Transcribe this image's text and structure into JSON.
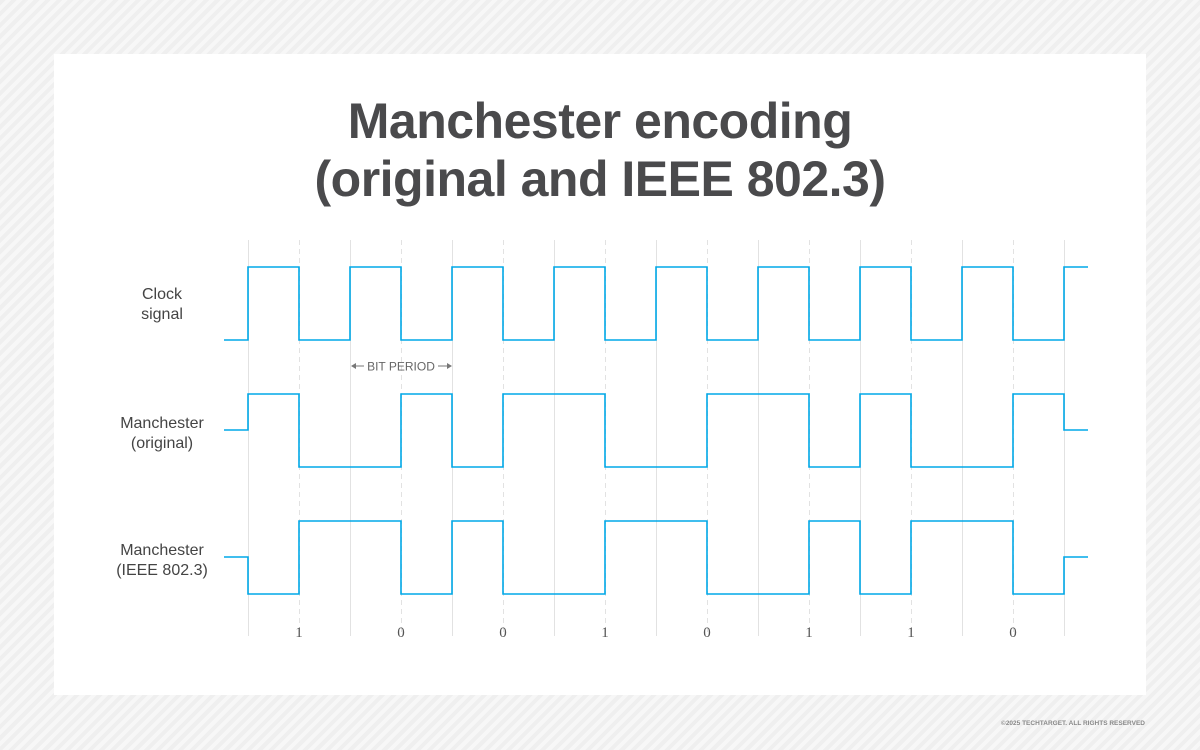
{
  "title_line1": "Manchester encoding",
  "title_line2": "(original and IEEE 802.3)",
  "signals": [
    {
      "label_line1": "Clock",
      "label_line2": "signal"
    },
    {
      "label_line1": "Manchester",
      "label_line2": "(original)"
    },
    {
      "label_line1": "Manchester",
      "label_line2": "(IEEE 802.3)"
    }
  ],
  "bit_period_label": "BIT PERIOD",
  "bits": [
    "1",
    "0",
    "0",
    "1",
    "0",
    "1",
    "1",
    "0"
  ],
  "signal_color": "#00a8e8",
  "copyright": "©2025 TECHTARGET. ALL RIGHTS RESERVED"
}
